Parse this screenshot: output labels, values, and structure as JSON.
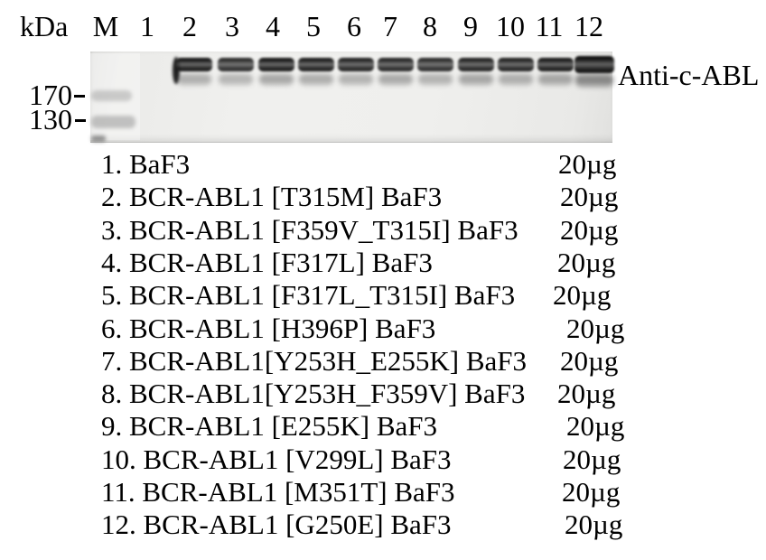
{
  "colors": {
    "background": "#ffffff",
    "text": "#000000",
    "blot_background": "#ededeb"
  },
  "figure": {
    "kda_label": "kDa",
    "marker_lane": "M",
    "lane_numbers": [
      "1",
      "2",
      "3",
      "4",
      "5",
      "6",
      "7",
      "8",
      "9",
      "10",
      "11",
      "12"
    ],
    "antibody_label": "Anti-c-ABL",
    "mw_markers": [
      "170",
      "130"
    ],
    "samples": [
      {
        "label": "1. BaF3",
        "amount": "20µg"
      },
      {
        "label": "2. BCR-ABL1 [T315M] BaF3",
        "amount": "20µg"
      },
      {
        "label": "3. BCR-ABL1 [F359V_T315I] BaF3",
        "amount": "20µg"
      },
      {
        "label": "4. BCR-ABL1 [F317L] BaF3",
        "amount": "20µg"
      },
      {
        "label": "5. BCR-ABL1 [F317L_T315I] BaF3",
        "amount": "20µg"
      },
      {
        "label": "6. BCR-ABL1 [H396P] BaF3",
        "amount": "20µg"
      },
      {
        "label": "7. BCR-ABL1[Y253H_E255K] BaF3",
        "amount": "20µg"
      },
      {
        "label": "8. BCR-ABL1[Y253H_F359V] BaF3",
        "amount": "20µg"
      },
      {
        "label": "9. BCR-ABL1 [E255K] BaF3",
        "amount": "20µg"
      },
      {
        "label": "10. BCR-ABL1 [V299L] BaF3",
        "amount": "20µg"
      },
      {
        "label": "11. BCR-ABL1 [M351T] BaF3",
        "amount": "20µg"
      },
      {
        "label": "12. BCR-ABL1 [G250E] BaF3",
        "amount": "20µg"
      }
    ],
    "blot": {
      "marker_bands": [
        {
          "kda": "170",
          "intensity": 0.34
        },
        {
          "kda": "130",
          "intensity": 0.42
        }
      ],
      "lanes": [
        {
          "lane": "1",
          "upper": 0,
          "lower": 0
        },
        {
          "lane": "2",
          "upper": 0.97,
          "lower": 0.42,
          "edge_blob": true
        },
        {
          "lane": "3",
          "upper": 0.88,
          "lower": 0.38
        },
        {
          "lane": "4",
          "upper": 0.97,
          "lower": 0.48
        },
        {
          "lane": "5",
          "upper": 0.95,
          "lower": 0.44
        },
        {
          "lane": "6",
          "upper": 0.92,
          "lower": 0.4
        },
        {
          "lane": "7",
          "upper": 0.9,
          "lower": 0.46
        },
        {
          "lane": "8",
          "upper": 0.88,
          "lower": 0.4
        },
        {
          "lane": "9",
          "upper": 0.92,
          "lower": 0.48
        },
        {
          "lane": "10",
          "upper": 0.92,
          "lower": 0.42
        },
        {
          "lane": "11",
          "upper": 0.96,
          "lower": 0.48
        },
        {
          "lane": "12",
          "upper": 1.0,
          "lower": 0.65
        }
      ]
    }
  }
}
